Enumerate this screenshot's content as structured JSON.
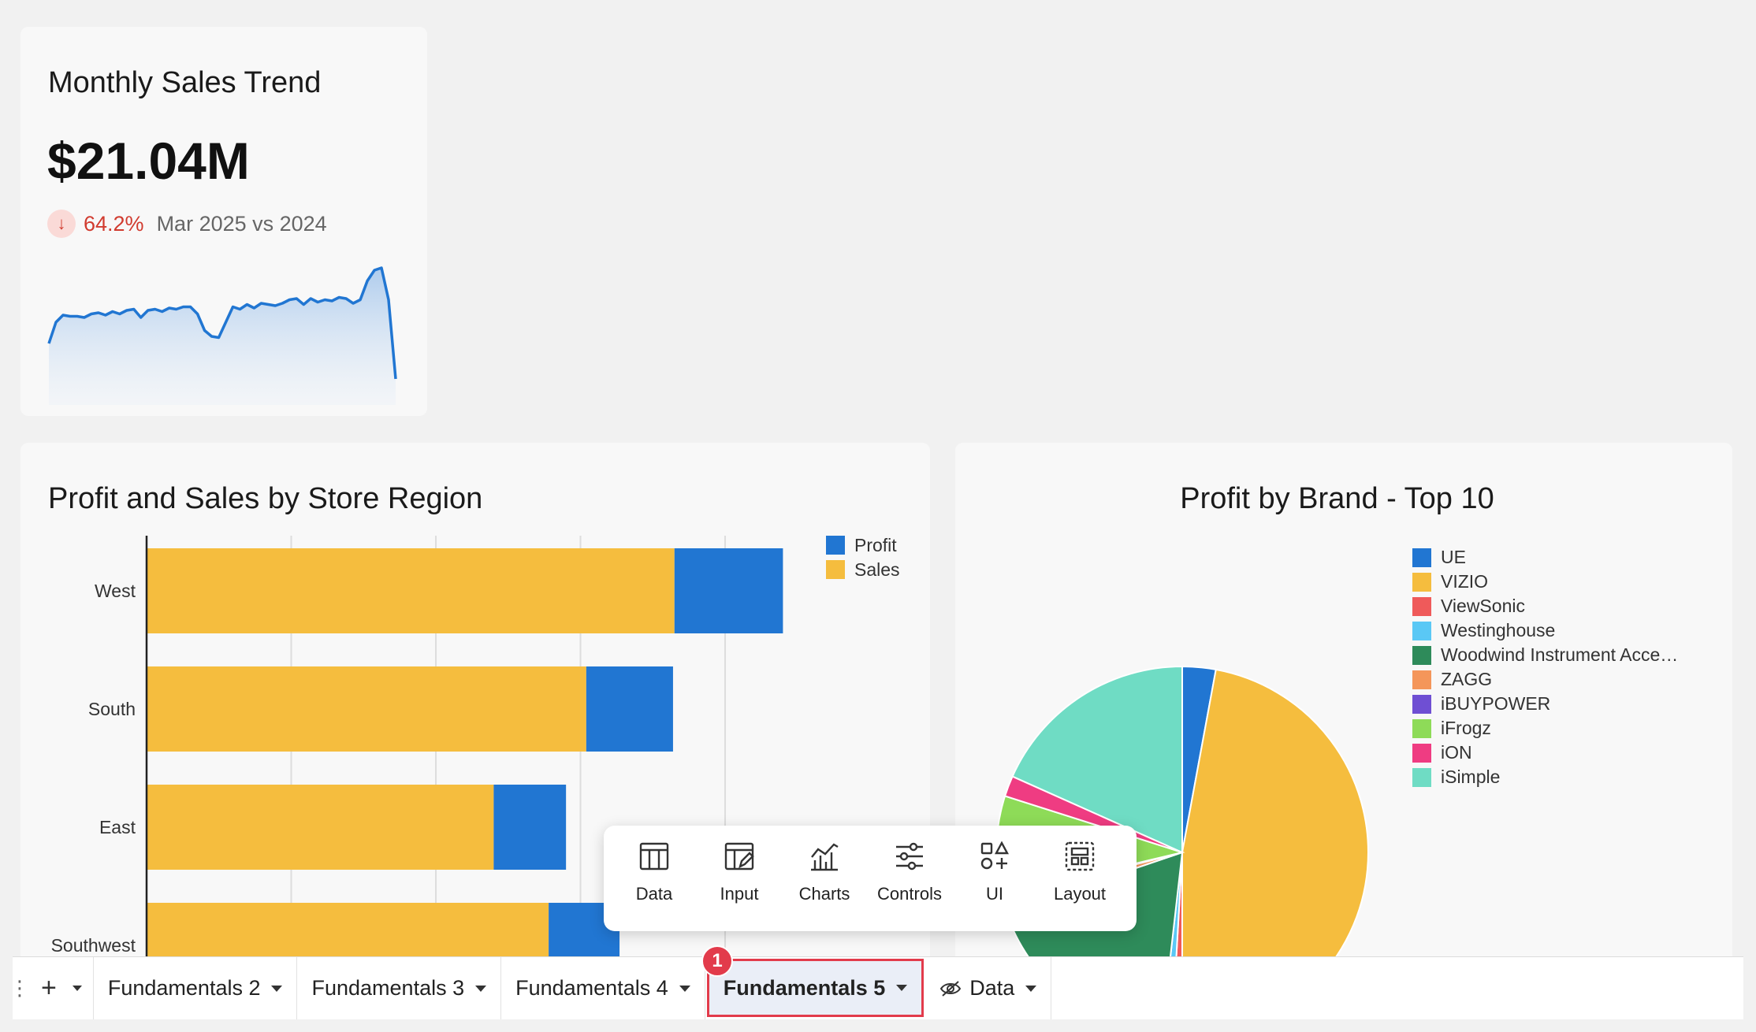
{
  "kpi": {
    "title": "Monthly Sales Trend",
    "value": "$21.04M",
    "change": "64.2%",
    "direction": "down",
    "compare_label": "Mar 2025 vs 2024",
    "sparkline": [
      52,
      70,
      76,
      75,
      75,
      74,
      77,
      78,
      76,
      79,
      77,
      80,
      81,
      74,
      80,
      81,
      79,
      82,
      81,
      83,
      83,
      77,
      63,
      58,
      57,
      70,
      83,
      81,
      85,
      82,
      86,
      85,
      84,
      86,
      89,
      90,
      85,
      90,
      87,
      89,
      88,
      91,
      90,
      86,
      89,
      105,
      114,
      116,
      89,
      22
    ],
    "line_color": "#2176d2"
  },
  "bar_chart": {
    "title": "Profit and Sales by Store Region",
    "chart_data": {
      "type": "bar",
      "orientation": "horizontal",
      "stacked": true,
      "categories": [
        "West",
        "South",
        "East",
        "Southwest"
      ],
      "series": [
        {
          "name": "Sales",
          "color": "#f5bd3e",
          "values": [
            36.5,
            30.4,
            24.0,
            27.8
          ]
        },
        {
          "name": "Profit",
          "color": "#2176d2",
          "values": [
            7.5,
            6.0,
            5.0,
            4.9
          ]
        }
      ],
      "legend_order": [
        "Profit",
        "Sales"
      ],
      "xlim": [
        0,
        50
      ],
      "x_grid_step": 10,
      "grid": true,
      "legend": "top-right"
    }
  },
  "pie_chart": {
    "title": "Profit by Brand - Top 10",
    "chart_data": {
      "type": "pie",
      "labels": [
        "UE",
        "VIZIO",
        "ViewSonic",
        "Westinghouse",
        "Woodwind Instrument Acce…",
        "ZAGG",
        "iBUYPOWER",
        "iFrogz",
        "iON",
        "iSimple"
      ],
      "values": [
        2.9,
        47.1,
        0.9,
        0.9,
        18.0,
        1.2,
        0.3,
        8.6,
        1.8,
        18.3
      ],
      "colors": [
        "#2176d2",
        "#f5bd3e",
        "#ef5a5a",
        "#5ac8f5",
        "#2e8b5a",
        "#f4965a",
        "#6f4fd3",
        "#8edb58",
        "#ef3c82",
        "#6fdcc4"
      ],
      "legend": "right"
    }
  },
  "toolbar": {
    "items": [
      {
        "label": "Data",
        "icon": "table-icon"
      },
      {
        "label": "Input",
        "icon": "input-table-icon"
      },
      {
        "label": "Charts",
        "icon": "chart-icon"
      },
      {
        "label": "Controls",
        "icon": "sliders-icon"
      },
      {
        "label": "UI",
        "icon": "shapes-icon"
      },
      {
        "label": "Layout",
        "icon": "layout-icon"
      }
    ]
  },
  "tabs": {
    "add_label": "+",
    "items": [
      "Fundamentals 2",
      "Fundamentals 3",
      "Fundamentals 4",
      "Fundamentals 5"
    ],
    "active": "Fundamentals 5",
    "data_tab": "Data",
    "badge": "1"
  }
}
